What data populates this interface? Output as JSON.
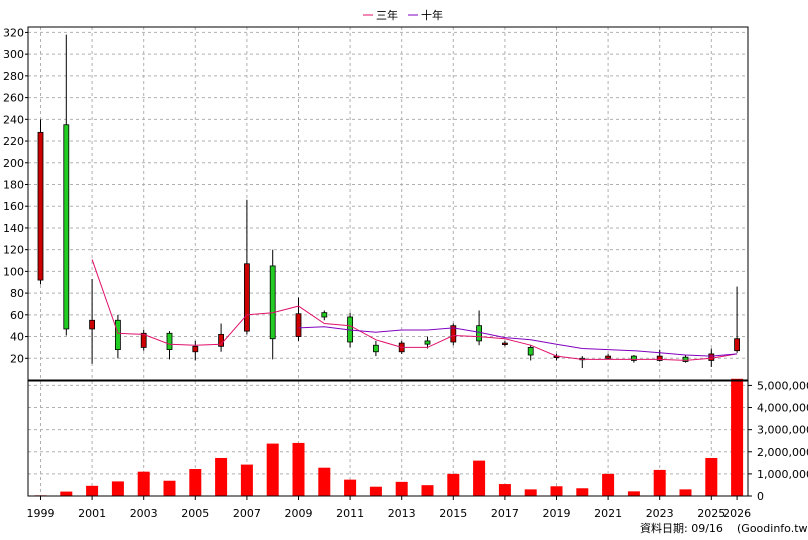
{
  "legend": [
    {
      "label": "三年",
      "color": "#e0106a"
    },
    {
      "label": "十年",
      "color": "#8000c0"
    }
  ],
  "footer": {
    "date_label": "資料日期: 09/16",
    "source": "(Goodinfo.tw)"
  },
  "chart_data": [
    {
      "type": "candlestick",
      "y_axis": {
        "side": "left",
        "ylim": [
          0,
          325
        ],
        "ticks": [
          20,
          40,
          60,
          80,
          100,
          120,
          140,
          160,
          180,
          200,
          220,
          240,
          260,
          280,
          300,
          320
        ]
      },
      "x_labels": [
        "1999",
        "2001",
        "2003",
        "2005",
        "2007",
        "2009",
        "2011",
        "2013",
        "2015",
        "2017",
        "2019",
        "2021",
        "2023",
        "2025",
        "2026"
      ],
      "grid": true,
      "candles": [
        {
          "year": 1999,
          "open": 228,
          "close": 92,
          "high": 240,
          "low": 88
        },
        {
          "year": 2000,
          "open": 47,
          "close": 235,
          "high": 318,
          "low": 41
        },
        {
          "year": 2001,
          "open": 55,
          "close": 47,
          "high": 93,
          "low": 15
        },
        {
          "year": 2002,
          "open": 28,
          "close": 55,
          "high": 60,
          "low": 20
        },
        {
          "year": 2003,
          "open": 43,
          "close": 30,
          "high": 46,
          "low": 27
        },
        {
          "year": 2004,
          "open": 28,
          "close": 43,
          "high": 45,
          "low": 19
        },
        {
          "year": 2005,
          "open": 31,
          "close": 26,
          "high": 36,
          "low": 18
        },
        {
          "year": 2006,
          "open": 42,
          "close": 31,
          "high": 52,
          "low": 26
        },
        {
          "year": 2007,
          "open": 107,
          "close": 45,
          "high": 166,
          "low": 42
        },
        {
          "year": 2008,
          "open": 38,
          "close": 105,
          "high": 120,
          "low": 19
        },
        {
          "year": 2009,
          "open": 61,
          "close": 40,
          "high": 76,
          "low": 36
        },
        {
          "year": 2010,
          "open": 58,
          "close": 62,
          "high": 64,
          "low": 55
        },
        {
          "year": 2011,
          "open": 35,
          "close": 58,
          "high": 62,
          "low": 30
        },
        {
          "year": 2012,
          "open": 26,
          "close": 32,
          "high": 36,
          "low": 22
        },
        {
          "year": 2013,
          "open": 34,
          "close": 26,
          "high": 36,
          "low": 24
        },
        {
          "year": 2014,
          "open": 33,
          "close": 36,
          "high": 40,
          "low": 29
        },
        {
          "year": 2015,
          "open": 50,
          "close": 35,
          "high": 52,
          "low": 32
        },
        {
          "year": 2016,
          "open": 36,
          "close": 50,
          "high": 64,
          "low": 32
        },
        {
          "year": 2017,
          "open": 34,
          "close": 33,
          "high": 36,
          "low": 31
        },
        {
          "year": 2018,
          "open": 23,
          "close": 30,
          "high": 32,
          "low": 18
        },
        {
          "year": 2019,
          "open": 22,
          "close": 21,
          "high": 24,
          "low": 18
        },
        {
          "year": 2020,
          "open": 20,
          "close": 20,
          "high": 22,
          "low": 11
        },
        {
          "year": 2021,
          "open": 22,
          "close": 20,
          "high": 24,
          "low": 19
        },
        {
          "year": 2022,
          "open": 18,
          "close": 22,
          "high": 23,
          "low": 16
        },
        {
          "year": 2023,
          "open": 22,
          "close": 18,
          "high": 28,
          "low": 17
        },
        {
          "year": 2024,
          "open": 17,
          "close": 21,
          "high": 23,
          "low": 16
        },
        {
          "year": 2025,
          "open": 24,
          "close": 18,
          "high": 29,
          "low": 12
        },
        {
          "year": 2026,
          "open": 38,
          "close": 27,
          "high": 86,
          "low": 25
        }
      ],
      "series": [
        {
          "name": "三年",
          "color": "#e0106a",
          "points": [
            [
              2001,
              111
            ],
            [
              2002,
              43
            ],
            [
              2003,
              42
            ],
            [
              2004,
              33
            ],
            [
              2005,
              32
            ],
            [
              2006,
              33
            ],
            [
              2007,
              60
            ],
            [
              2008,
              62
            ],
            [
              2009,
              68
            ],
            [
              2010,
              52
            ],
            [
              2011,
              50
            ],
            [
              2012,
              37
            ],
            [
              2013,
              30
            ],
            [
              2014,
              30
            ],
            [
              2015,
              41
            ],
            [
              2016,
              40
            ],
            [
              2017,
              38
            ],
            [
              2018,
              32
            ],
            [
              2019,
              22
            ],
            [
              2020,
              19
            ],
            [
              2021,
              19
            ],
            [
              2022,
              19
            ],
            [
              2023,
              19
            ],
            [
              2024,
              18
            ],
            [
              2025,
              20
            ],
            [
              2026,
              24
            ]
          ]
        },
        {
          "name": "十年",
          "color": "#8000c0",
          "points": [
            [
              2009,
              48
            ],
            [
              2010,
              49
            ],
            [
              2011,
              46
            ],
            [
              2012,
              44
            ],
            [
              2013,
              46
            ],
            [
              2014,
              46
            ],
            [
              2015,
              48
            ],
            [
              2016,
              44
            ],
            [
              2017,
              39
            ],
            [
              2018,
              37
            ],
            [
              2019,
              33
            ],
            [
              2020,
              29
            ],
            [
              2021,
              28
            ],
            [
              2022,
              27
            ],
            [
              2023,
              25
            ],
            [
              2024,
              23
            ],
            [
              2025,
              22
            ],
            [
              2026,
              24
            ]
          ]
        }
      ]
    },
    {
      "type": "bar",
      "y_axis": {
        "side": "right",
        "ylim": [
          0,
          5200000
        ],
        "ticks": [
          "0",
          "1,000,000",
          "2,000,000",
          "3,000,000",
          "4,000,000",
          "5,000,000"
        ]
      },
      "color": "#ff0000",
      "x": [
        1999,
        2000,
        2001,
        2002,
        2003,
        2004,
        2005,
        2006,
        2007,
        2008,
        2009,
        2010,
        2011,
        2012,
        2013,
        2014,
        2015,
        2016,
        2017,
        2018,
        2019,
        2020,
        2021,
        2022,
        2023,
        2024,
        2025,
        2026
      ],
      "values": [
        30000,
        200000,
        460000,
        660000,
        1100000,
        690000,
        1220000,
        1720000,
        1420000,
        2370000,
        2400000,
        1280000,
        740000,
        420000,
        640000,
        490000,
        1000000,
        1600000,
        540000,
        300000,
        440000,
        350000,
        1000000,
        210000,
        1180000,
        300000,
        1720000,
        5300000
      ]
    }
  ]
}
